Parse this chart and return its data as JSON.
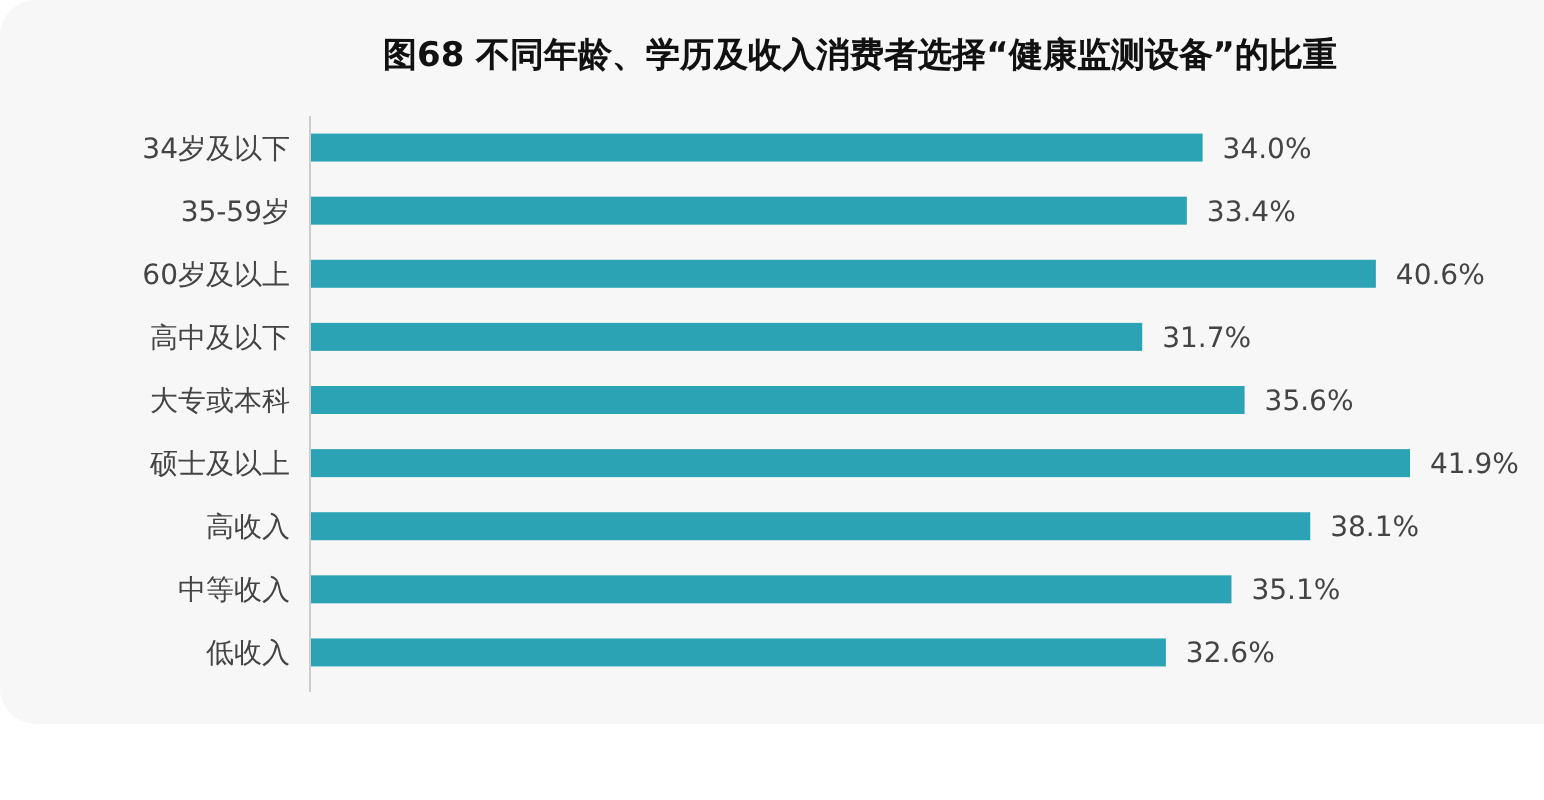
{
  "chart_data": {
    "type": "bar",
    "orientation": "horizontal",
    "title": "图68 不同年龄、学历及收入消费者选择“健康监测设备”的比重",
    "categories": [
      "34岁及以下",
      "35-59岁",
      "60岁及以上",
      "高中及以下",
      "大专或本科",
      "硕士及以上",
      "高收入",
      "中等收入",
      "低收入"
    ],
    "values": [
      34.0,
      33.4,
      40.6,
      31.7,
      35.6,
      41.9,
      38.1,
      35.1,
      32.6
    ],
    "value_labels": [
      "34.0%",
      "33.4%",
      "40.6%",
      "31.7%",
      "35.6%",
      "41.9%",
      "38.1%",
      "35.1%",
      "32.6%"
    ],
    "color": "#2ca3b5"
  }
}
